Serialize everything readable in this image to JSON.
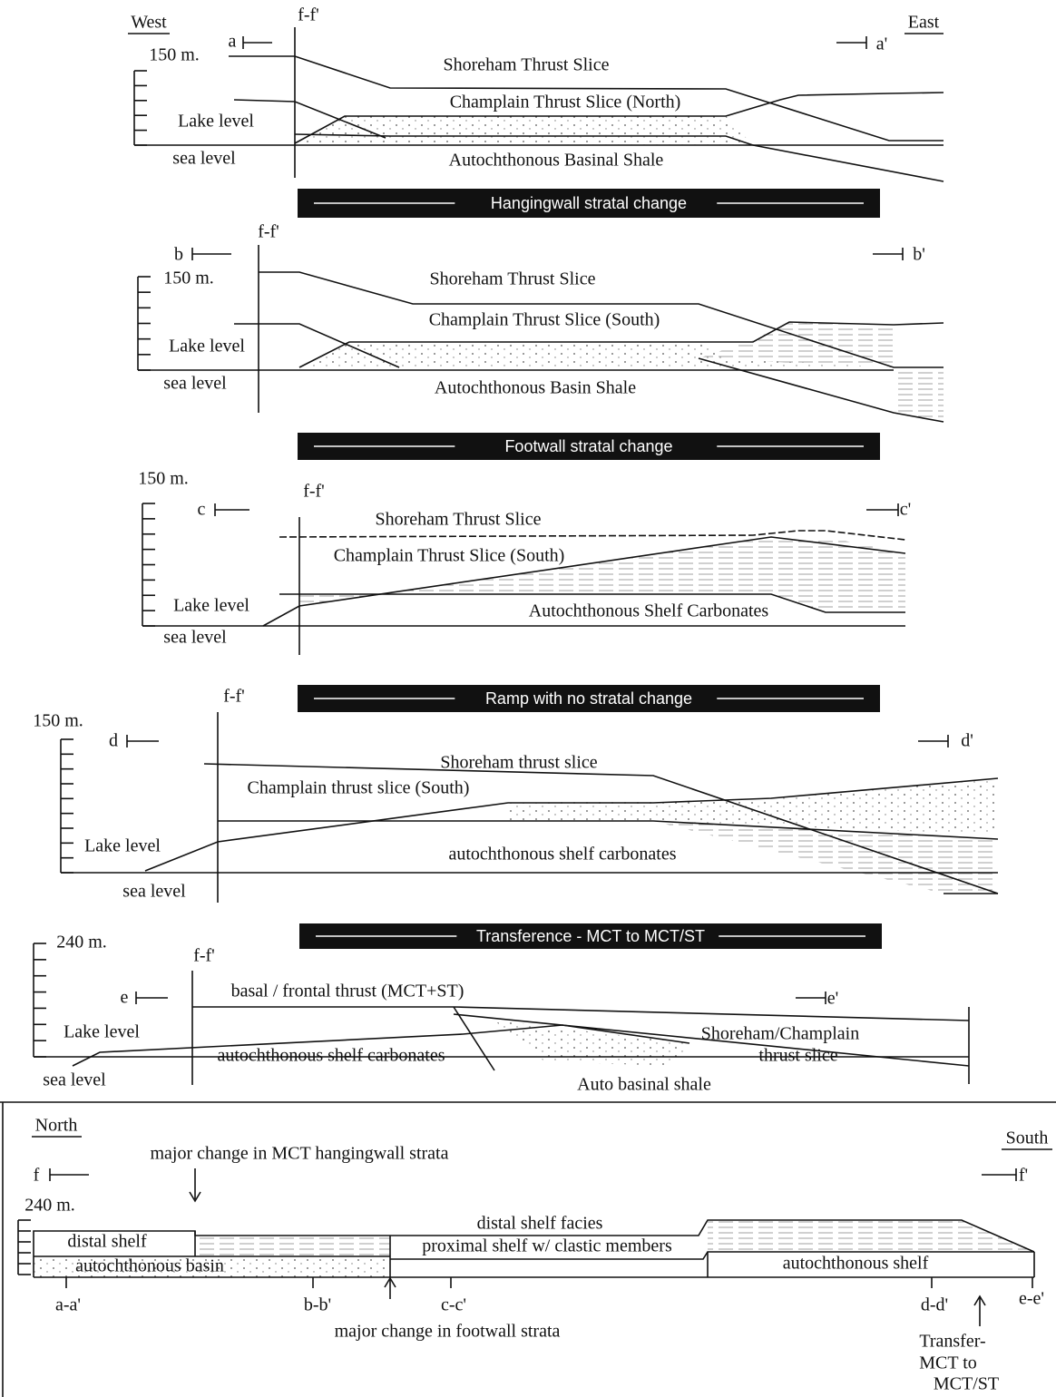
{
  "header": {
    "west": "West",
    "east": "East"
  },
  "sections": [
    {
      "scale": "150 m.",
      "fault": "f-f'",
      "start": "a",
      "end": "a'",
      "lake": "Lake level",
      "sea": "sea level",
      "units": [
        "Shoreham Thrust Slice",
        "Champlain Thrust Slice (North)",
        "Autochthonous Basinal Shale"
      ]
    },
    {
      "scale": "150 m.",
      "fault": "f-f'",
      "start": "b",
      "end": "b'",
      "lake": "Lake level",
      "sea": "sea level",
      "units": [
        "Shoreham Thrust Slice",
        "Champlain Thrust Slice (South)",
        "Autochthonous Basin Shale"
      ]
    },
    {
      "scale": "150 m.",
      "fault": "f-f'",
      "start": "c",
      "end": "c'",
      "lake": "Lake level",
      "sea": "sea level",
      "units": [
        "Shoreham Thrust Slice",
        "Champlain Thrust Slice (South)",
        "Autochthonous Shelf Carbonates"
      ]
    },
    {
      "scale": "150 m.",
      "fault": "f-f'",
      "start": "d",
      "end": "d'",
      "lake": "Lake level",
      "sea": "sea level",
      "units": [
        "Shoreham thrust slice",
        "Champlain thrust slice (South)",
        "autochthonous shelf carbonates"
      ]
    },
    {
      "scale": "240 m.",
      "fault": "f-f'",
      "start": "e",
      "end": "e'",
      "lake": "Lake level",
      "sea": "sea level",
      "units": [
        "basal / frontal thrust (MCT+ST)",
        "autochthonous shelf carbonates",
        "Shoreham/Champlain",
        "thrust slice",
        "Auto basinal shale"
      ]
    }
  ],
  "banners": [
    "Hangingwall stratal change",
    "Footwall stratal change",
    "Ramp with no stratal change",
    "Transference - MCT to MCT/ST"
  ],
  "profile": {
    "north": "North",
    "south": "South",
    "start": "f",
    "end": "f'",
    "scale": "240 m.",
    "annotations": [
      "major change in MCT hangingwall strata",
      "major change in footwall strata",
      "Transfer-",
      "MCT to",
      "MCT/ST"
    ],
    "units": [
      "distal shelf",
      "autochthonous basin",
      "distal shelf facies",
      "proximal shelf w/ clastic members",
      "autochthonous shelf"
    ],
    "stations": [
      "a-a'",
      "b-b'",
      "c-c'",
      "d-d'",
      "e-e'"
    ]
  }
}
